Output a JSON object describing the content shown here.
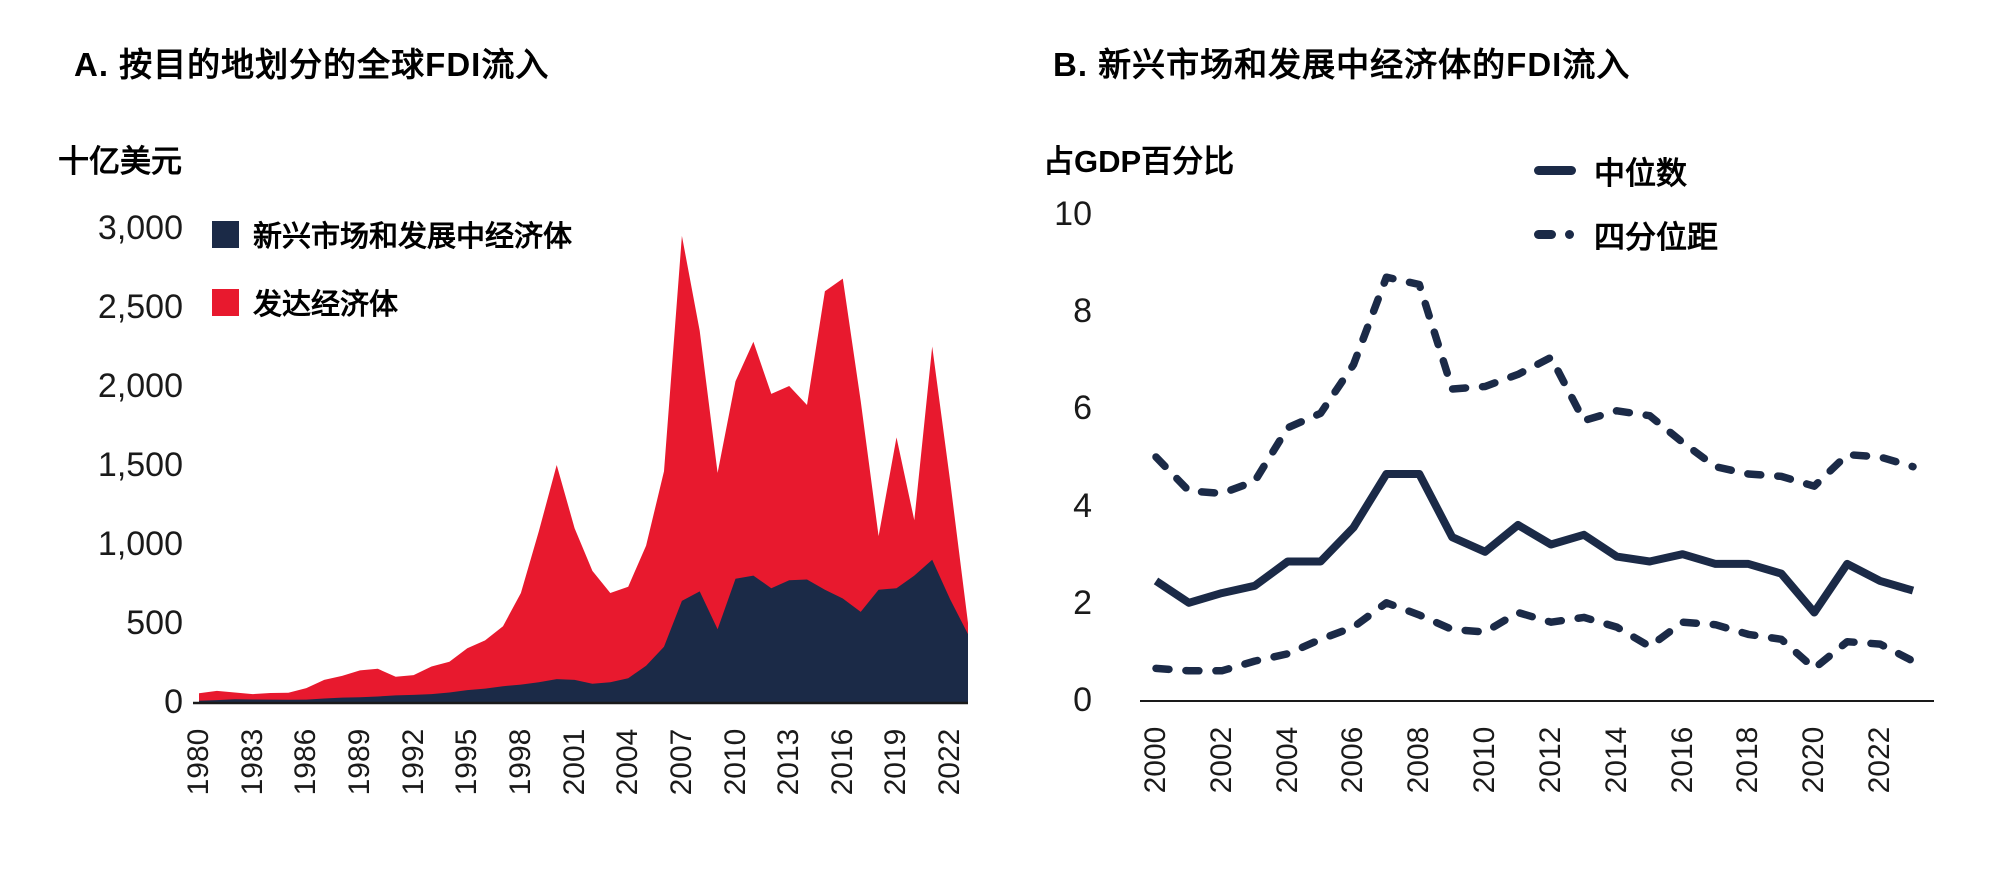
{
  "panels": [
    {
      "title": "A. 按目的地划分的全球FDI流入",
      "unit": "十亿美元",
      "legend": [
        {
          "label": "新兴市场和发展中经济体",
          "swatch": "square",
          "color": "#1b2a47"
        },
        {
          "label": "发达经济体",
          "swatch": "square",
          "color": "#e8192e"
        }
      ]
    },
    {
      "title": "B. 新兴市场和发展中经济体的FDI流入",
      "unit": "占GDP百分比",
      "legend": [
        {
          "label": "中位数",
          "swatch": "solid-line",
          "color": "#1b2a47"
        },
        {
          "label": "四分位距",
          "swatch": "dashed-line",
          "color": "#1b2a47"
        }
      ]
    }
  ],
  "chart_data": [
    {
      "type": "area",
      "stacked": true,
      "title": "A. 按目的地划分的全球FDI流入",
      "ylabel": "十亿美元",
      "xlim": [
        1980,
        2023
      ],
      "ylim": [
        0,
        3000
      ],
      "grid": false,
      "legend_position": "top-left",
      "x": [
        1980,
        1981,
        1982,
        1983,
        1984,
        1985,
        1986,
        1987,
        1988,
        1989,
        1990,
        1991,
        1992,
        1993,
        1994,
        1995,
        1996,
        1997,
        1998,
        1999,
        2000,
        2001,
        2002,
        2003,
        2004,
        2005,
        2006,
        2007,
        2008,
        2009,
        2010,
        2011,
        2012,
        2013,
        2014,
        2015,
        2016,
        2017,
        2018,
        2019,
        2020,
        2021,
        2022,
        2023
      ],
      "series": [
        {
          "name": "新兴市场和发展中经济体",
          "color": "#1b2a47",
          "values": [
            8,
            12,
            18,
            16,
            15,
            14,
            15,
            22,
            28,
            30,
            35,
            42,
            45,
            50,
            60,
            75,
            85,
            100,
            110,
            125,
            145,
            140,
            115,
            125,
            150,
            230,
            350,
            640,
            700,
            460,
            780,
            800,
            720,
            770,
            775,
            710,
            655,
            570,
            710,
            720,
            800,
            900,
            650,
            430
          ]
        },
        {
          "name": "发达经济体",
          "color": "#e8192e",
          "values": [
            47,
            58,
            42,
            34,
            42,
            44,
            73,
            118,
            137,
            170,
            175,
            118,
            125,
            175,
            195,
            265,
            305,
            380,
            580,
            955,
            1355,
            960,
            715,
            565,
            580,
            760,
            1110,
            2310,
            1650,
            990,
            1250,
            1480,
            1230,
            1230,
            1105,
            1890,
            2025,
            1335,
            340,
            955,
            350,
            1350,
            750,
            70
          ]
        }
      ],
      "y_tick_values": [
        0,
        500,
        1000,
        1500,
        2000,
        2500,
        3000
      ],
      "y_tick_labels": [
        "0",
        "500",
        "1,000",
        "1,500",
        "2,000",
        "2,500",
        "3,000"
      ],
      "x_tick_values": [
        1980,
        1983,
        1986,
        1989,
        1992,
        1995,
        1998,
        2001,
        2004,
        2007,
        2010,
        2013,
        2016,
        2019,
        2022
      ],
      "x_tick_labels": [
        "1980",
        "1983",
        "1986",
        "1989",
        "1992",
        "1995",
        "1998",
        "2001",
        "2004",
        "2007",
        "2010",
        "2013",
        "2016",
        "2019",
        "2022"
      ]
    },
    {
      "type": "line",
      "title": "B. 新兴市场和发展中经济体的FDI流入",
      "ylabel": "占GDP百分比",
      "xlim": [
        2000,
        2023
      ],
      "ylim": [
        0,
        10
      ],
      "grid": false,
      "legend_position": "top-right",
      "x": [
        2000,
        2001,
        2002,
        2003,
        2004,
        2005,
        2006,
        2007,
        2008,
        2009,
        2010,
        2011,
        2012,
        2013,
        2014,
        2015,
        2016,
        2017,
        2018,
        2019,
        2020,
        2021,
        2022,
        2023
      ],
      "series": [
        {
          "name": "中位数",
          "style": "solid",
          "color": "#1b2a47",
          "values": [
            2.45,
            2.0,
            2.2,
            2.35,
            2.85,
            2.85,
            3.55,
            4.65,
            4.65,
            3.35,
            3.05,
            3.6,
            3.2,
            3.4,
            2.95,
            2.85,
            3.0,
            2.8,
            2.8,
            2.6,
            1.8,
            2.8,
            2.45,
            2.25
          ]
        },
        {
          "name": "四分位距",
          "bound": "upper",
          "style": "dashed",
          "color": "#1b2a47",
          "values": [
            5.0,
            4.3,
            4.25,
            4.5,
            5.6,
            5.9,
            6.9,
            8.7,
            8.55,
            6.4,
            6.45,
            6.7,
            7.05,
            5.75,
            5.95,
            5.85,
            5.3,
            4.8,
            4.65,
            4.6,
            4.4,
            5.05,
            5.0,
            4.8
          ]
        },
        {
          "name": "四分位距",
          "bound": "lower",
          "style": "dashed",
          "color": "#1b2a47",
          "values": [
            0.65,
            0.6,
            0.6,
            0.8,
            0.95,
            1.25,
            1.5,
            2.0,
            1.75,
            1.45,
            1.4,
            1.8,
            1.6,
            1.7,
            1.5,
            1.1,
            1.6,
            1.55,
            1.35,
            1.25,
            0.65,
            1.2,
            1.15,
            0.8
          ]
        }
      ],
      "y_tick_values": [
        0,
        2,
        4,
        6,
        8,
        10
      ],
      "y_tick_labels": [
        "0",
        "2",
        "4",
        "6",
        "8",
        "10"
      ],
      "x_tick_values": [
        2000,
        2002,
        2004,
        2006,
        2008,
        2010,
        2012,
        2014,
        2016,
        2018,
        2020,
        2022
      ],
      "x_tick_labels": [
        "2000",
        "2002",
        "2004",
        "2006",
        "2008",
        "2010",
        "2012",
        "2014",
        "2016",
        "2018",
        "2020",
        "2022"
      ]
    }
  ],
  "colors": {
    "navy": "#1b2a47",
    "red": "#e8192e",
    "axis": "#1a1a1a"
  }
}
